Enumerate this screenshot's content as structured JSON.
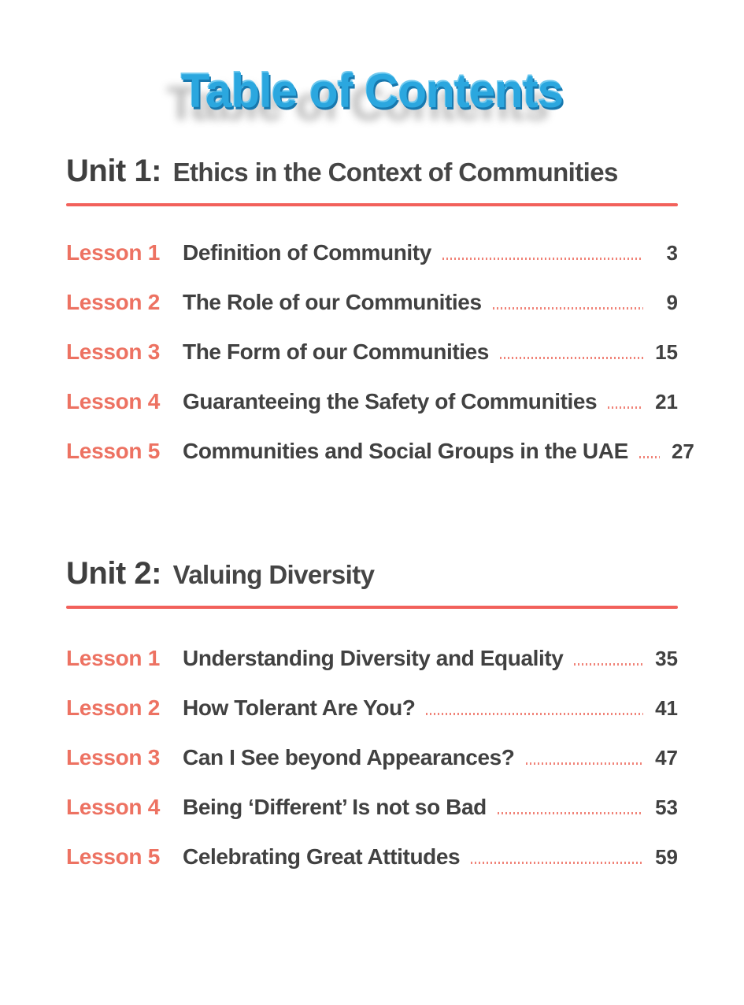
{
  "page": {
    "title": "Table of Contents"
  },
  "colors": {
    "title_blue": "#2BA7DF",
    "title_edge_blue": "#1878AE",
    "lesson_label_coral": "#ED7262",
    "rule_red": "#F2615B",
    "leader_dot_salmon": "#F08378",
    "text_dark_gray": "#414141"
  },
  "units": [
    {
      "heading_label": "Unit 1:",
      "heading_title": "Ethics in the Context of Communities",
      "lessons": [
        {
          "label": "Lesson 1",
          "title": "Definition of Community",
          "page": "3"
        },
        {
          "label": "Lesson 2",
          "title": "The Role of our Communities",
          "page": "9"
        },
        {
          "label": "Lesson 3",
          "title": "The Form of our Communities",
          "page": "15"
        },
        {
          "label": "Lesson 4",
          "title": "Guaranteeing the Safety of Communities",
          "page": "21"
        },
        {
          "label": "Lesson 5",
          "title": "Communities and Social Groups in the UAE",
          "page": "27"
        }
      ]
    },
    {
      "heading_label": "Unit 2:",
      "heading_title": "Valuing Diversity",
      "lessons": [
        {
          "label": "Lesson 1",
          "title": "Understanding Diversity and Equality",
          "page": "35"
        },
        {
          "label": "Lesson 2",
          "title": "How Tolerant Are You?",
          "page": "41"
        },
        {
          "label": "Lesson 3",
          "title": "Can I See beyond Appearances?",
          "page": "47"
        },
        {
          "label": "Lesson 4",
          "title": "Being ‘Different’ Is not so Bad",
          "page": "53"
        },
        {
          "label": "Lesson 5",
          "title": "Celebrating Great Attitudes",
          "page": "59"
        }
      ]
    }
  ]
}
